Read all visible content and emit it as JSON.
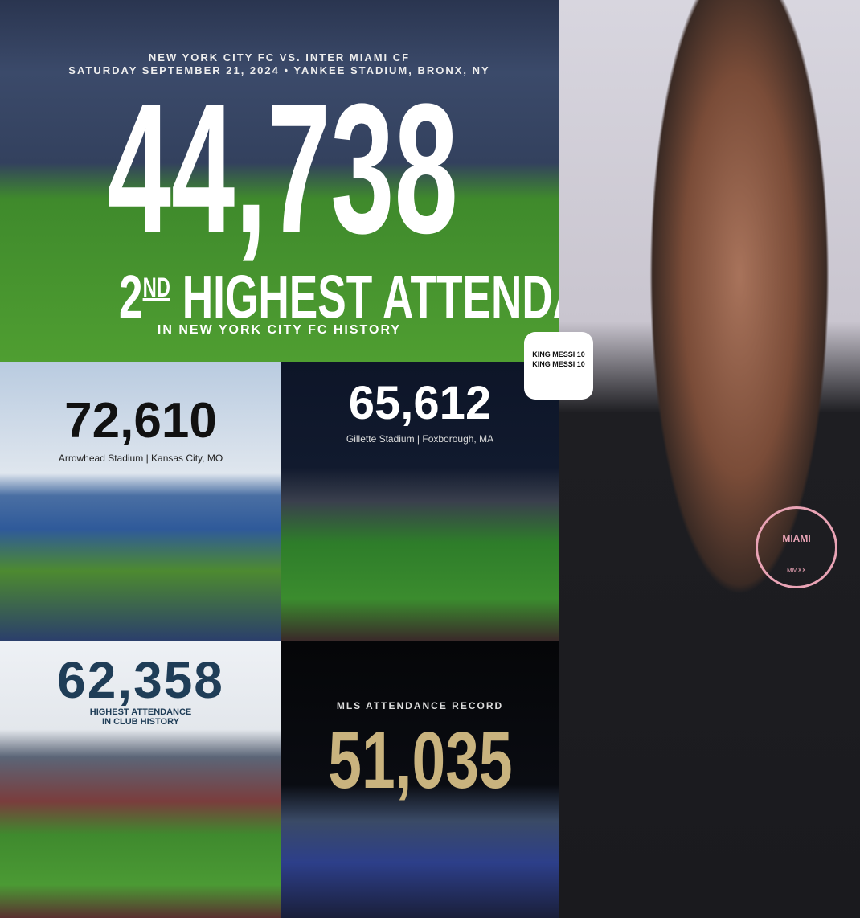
{
  "hero": {
    "match": "NEW YORK CITY FC VS. INTER MIAMI CF",
    "date": "SATURDAY SEPTEMBER 21, 2024 • YANKEE STADIUM, BRONX, NY",
    "attendance": "44,738",
    "rank": "2",
    "rank_suffix": "ND",
    "headline": "HIGHEST ATTENDANCE",
    "subline": "IN NEW YORK CITY FC HISTORY"
  },
  "panels": [
    {
      "attendance": "72,610",
      "venue": "Arrowhead Stadium | Kansas City, MO"
    },
    {
      "attendance": "65,612",
      "venue": "Gillette Stadium | Foxborough, MA"
    },
    {
      "attendance": "62,358",
      "caption_lines": [
        "HIGHEST ATTENDANCE",
        "IN CLUB HISTORY"
      ]
    },
    {
      "caption": "MLS ATTENDANCE RECORD",
      "attendance": "51,035"
    }
  ],
  "badge": {
    "text": "KING MESSI 10 KING MESSI 10"
  },
  "crest": {
    "name": "MIAMI",
    "year": "MMXX"
  }
}
